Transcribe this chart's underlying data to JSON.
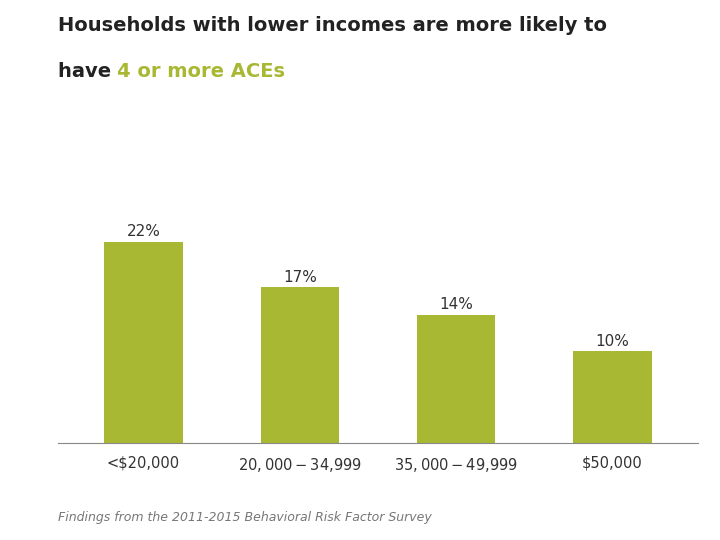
{
  "categories": [
    "<$20,000",
    "$20,000-$34,999",
    "$35,000-$49,999",
    "$50,000"
  ],
  "values": [
    22,
    17,
    14,
    10
  ],
  "bar_color": "#A8B832",
  "title_line1": "Households with lower incomes are more likely to",
  "title_line2_black": "have ",
  "title_line2_green": "4 or more ACEs",
  "title_fontsize": 14,
  "label_fontsize": 11,
  "xlabel_fontsize": 10.5,
  "footer_text": "Findings from the 2011-2015 Behavioral Risk Factor Survey",
  "footer_fontsize": 9,
  "background_color": "#ffffff",
  "ylim": [
    0,
    26
  ],
  "bar_width": 0.5
}
